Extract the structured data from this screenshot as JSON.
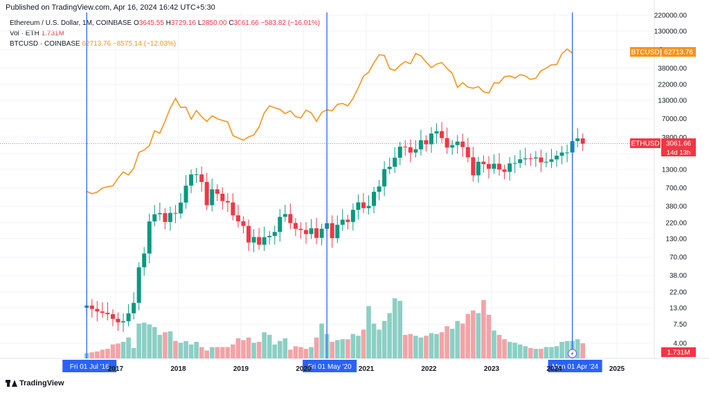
{
  "header": {
    "published": "Published on TradingView.com, Apr 16, 2024 16:42 UTC+5:30"
  },
  "legend": {
    "eth": {
      "name": "Ethereum / U.S. Dollar, 1M, COINBASE",
      "o_label": "O",
      "o": "3645.55",
      "h_label": "H",
      "h": "3729.16",
      "l_label": "L",
      "l": "2850.00",
      "c_label": "C",
      "c": "3061.66",
      "change": "−583.82 (−16.01%)"
    },
    "vol": {
      "name": "Vol · ETH",
      "value": "1.731M"
    },
    "btc": {
      "name": "BTCUSD · COINBASE",
      "value": "62713.76",
      "change": "−8575.14 (−12.03%)"
    }
  },
  "footer": {
    "brand": "TradingView"
  },
  "colors": {
    "up": "#089981",
    "down": "#f23645",
    "vol_up": "#8ccfc4",
    "vol_down": "#f3a3a7",
    "btc": "#f7931a",
    "vline": "#2962ff",
    "grid": "#f0f3fa"
  },
  "chart_data": {
    "type": "candlestick",
    "y_scale": "log",
    "y_ticks": [
      "220000.00",
      "130000.00",
      "70000.00",
      "38000.00",
      "22000.00",
      "13000.00",
      "7000.00",
      "3800.00",
      "2200.00",
      "1300.00",
      "700.00",
      "380.00",
      "220.00",
      "130.00",
      "70.00",
      "38.00",
      "22.00",
      "13.00",
      "7.50",
      "4.00"
    ],
    "y_tick_values": [
      220000,
      130000,
      70000,
      38000,
      22000,
      13000,
      7000,
      3800,
      2200,
      1300,
      700,
      380,
      220,
      130,
      70,
      38,
      22,
      13,
      7.5,
      4
    ],
    "x_ticks": [
      "2017",
      "2018",
      "2019",
      "2020",
      "2021",
      "2022",
      "2023",
      "2024",
      "2025"
    ],
    "x_tick_years": [
      2017,
      2018,
      2019,
      2020,
      2021,
      2022,
      2023,
      2024,
      2025
    ],
    "vertical_markers": [
      {
        "label": "Fri 01 Jul '16",
        "date": 2016.5
      },
      {
        "label": "Fri 01 May '20",
        "date": 2020.333
      },
      {
        "label": "Mon 01 Apr '24",
        "date": 2024.25
      }
    ],
    "price_tags": [
      {
        "name": "BTCUSD",
        "value": "62713.76",
        "color": "#f7931a",
        "price": 62713.76
      },
      {
        "name": "ETHUSD",
        "value": "3061.66",
        "sub": "14d 13h",
        "color": "#f23645",
        "price": 3061.66
      },
      {
        "name": "",
        "value": "1.731M",
        "color": "#f23645",
        "pane": "volume"
      }
    ],
    "eth_monthly_close": [
      14.0,
      12.5,
      11.5,
      11.0,
      10.5,
      9.0,
      8.0,
      8.3,
      10.8,
      15.3,
      50.0,
      79.0,
      230.0,
      292.0,
      303.0,
      226.0,
      305.0,
      300.0,
      431.0,
      756.0,
      1100.0,
      1100.0,
      855.0,
      395.0,
      671.0,
      578.0,
      453.0,
      433.0,
      282.0,
      231.0,
      198.0,
      114.0,
      137.0,
      106.0,
      136.0,
      142.0,
      162.0,
      268.0,
      294.0,
      218.0,
      180.0,
      173.0,
      151.0,
      183.0,
      133.0,
      180.0,
      217.0,
      132.0,
      206.0,
      244.0,
      226.0,
      338.0,
      434.0,
      358.0,
      386.0,
      617.0,
      737.0,
      1314.0,
      1418.0,
      1919.0,
      2774.0,
      2713.0,
      2275.0,
      2533.0,
      3434.0,
      3001.0,
      4291.0,
      4637.0,
      3682.0,
      2688.0,
      2920.0,
      3283.0,
      2728.0,
      1943.0,
      1067.0,
      1679.0,
      1554.0,
      1328.0,
      1572.0,
      1297.0,
      1199.0,
      1585.0,
      1605.0,
      1821.0,
      1874.0,
      1871.0,
      1933.0,
      1647.0,
      1671.0,
      1816.0,
      2051.0,
      2281.0,
      2283.0,
      3340.0,
      3645.0,
      3061.66
    ],
    "eth_start_open": 13.0,
    "btc_monthly_close": [
      625.0,
      578.0,
      610.0,
      700.0,
      730.0,
      750.0,
      970.0,
      1190.0,
      1080.0,
      1350.0,
      2300.0,
      2480.0,
      2880.0,
      4700.0,
      4340.0,
      6450.0,
      10000.0,
      13800.0,
      10200.0,
      10300.0,
      6900.0,
      9240.0,
      7500.0,
      6400.0,
      7730.0,
      7030.0,
      6630.0,
      6320.0,
      4000.0,
      3700.0,
      3440.0,
      3820.0,
      4100.0,
      5320.0,
      8550.0,
      10800.0,
      10100.0,
      9600.0,
      8300.0,
      9150.0,
      7500.0,
      7200.0,
      9350.0,
      8550.0,
      6430.0,
      8630.0,
      9450.0,
      9140.0,
      11330.0,
      11650.0,
      10780.0,
      13800.0,
      19700.0,
      29000.0,
      33100.0,
      45200.0,
      58900.0,
      57800.0,
      37300.0,
      35000.0,
      41500.0,
      47100.0,
      43800.0,
      61300.0,
      57000.0,
      46300.0,
      38500.0,
      43200.0,
      45500.0,
      37600.0,
      31800.0,
      19900.0,
      23300.0,
      20100.0,
      19400.0,
      20500.0,
      17200.0,
      16500.0,
      23100.0,
      23100.0,
      28500.0,
      29200.0,
      27200.0,
      30500.0,
      29200.0,
      25900.0,
      27000.0,
      34600.0,
      37700.0,
      42300.0,
      42600.0,
      61100.0,
      71300.0,
      62713.76
    ],
    "volume_monthly": [
      0.6,
      0.7,
      0.8,
      1.0,
      1.1,
      1.6,
      1.7,
      1.9,
      2.4,
      1.2,
      4.0,
      4.1,
      3.9,
      3.6,
      2.7,
      3.0,
      3.1,
      2.0,
      1.8,
      2.0,
      1.6,
      1.9,
      1.3,
      0.9,
      1.3,
      1.3,
      1.3,
      1.3,
      1.6,
      2.3,
      2.1,
      2.4,
      1.8,
      1.9,
      3.0,
      2.7,
      1.6,
      2.0,
      2.3,
      1.0,
      1.4,
      1.3,
      1.1,
      1.3,
      2.4,
      4.0,
      2.8,
      1.9,
      2.1,
      2.2,
      2.2,
      2.8,
      2.6,
      3.3,
      6.0,
      4.0,
      3.3,
      4.3,
      5.2,
      6.9,
      6.6,
      2.7,
      2.8,
      2.6,
      2.4,
      2.6,
      2.9,
      2.8,
      3.0,
      3.7,
      3.4,
      4.3,
      4.0,
      5.1,
      5.5,
      5.2,
      6.7,
      5.0,
      3.2,
      2.7,
      2.2,
      1.9,
      1.8,
      1.6,
      1.4,
      1.2,
      1.1,
      1.1,
      1.3,
      1.3,
      1.4,
      1.9,
      2.0,
      2.0,
      2.2,
      1.731
    ],
    "volume_axis_max_m": 10
  }
}
